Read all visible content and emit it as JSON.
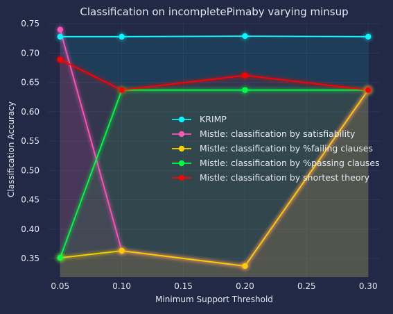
{
  "chart_data": {
    "type": "line",
    "title": "Classification on incompletePimaby varying minsup",
    "xlabel": "Minimum Support Threshold",
    "ylabel": "Classification Accuracy",
    "x": [
      0.05,
      0.1,
      0.2,
      0.3
    ],
    "xlim": [
      0.04,
      0.31
    ],
    "ylim": [
      0.318,
      0.755
    ],
    "xticks": [
      0.05,
      0.1,
      0.15,
      0.2,
      0.25,
      0.3
    ],
    "xtick_labels": [
      "0.05",
      "0.10",
      "0.15",
      "0.20",
      "0.25",
      "0.30"
    ],
    "yticks": [
      0.35,
      0.4,
      0.45,
      0.5,
      0.55,
      0.6,
      0.65,
      0.7,
      0.75
    ],
    "ytick_labels": [
      "0.35",
      "0.40",
      "0.45",
      "0.50",
      "0.55",
      "0.60",
      "0.65",
      "0.70",
      "0.75"
    ],
    "grid": true,
    "legend_position": "center-right",
    "series": [
      {
        "name": "KRIMP",
        "color": "#08F7FE",
        "values": [
          0.728,
          0.728,
          0.729,
          0.728
        ]
      },
      {
        "name": "Mistle: classification by satisfiability",
        "color": "#FE53BB",
        "values": [
          0.74,
          0.363,
          0.337,
          0.637
        ]
      },
      {
        "name": "Mistle: classification by %failing clauses",
        "color": "#F5D300",
        "values": [
          0.351,
          0.363,
          0.337,
          0.637
        ]
      },
      {
        "name": "Mistle: classification by %passing clauses",
        "color": "#00ff41",
        "values": [
          0.351,
          0.637,
          0.637,
          0.637
        ]
      },
      {
        "name": "Mistle: classification by shortest theory",
        "color": "#FF0000",
        "values": [
          0.689,
          0.637,
          0.662,
          0.637
        ]
      }
    ]
  }
}
